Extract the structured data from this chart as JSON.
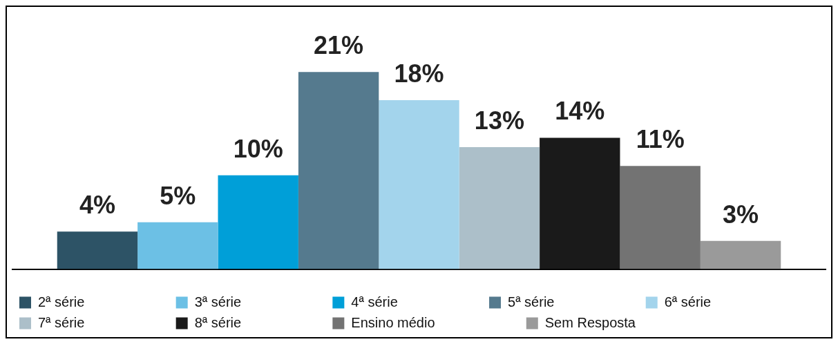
{
  "chart_data": {
    "type": "bar",
    "categories": [
      null
    ],
    "legend": "bottom",
    "grid": false,
    "series": [
      {
        "name": "2ª série",
        "color": "#2d5366",
        "values": [
          4
        ],
        "value_labels": [
          "4%"
        ]
      },
      {
        "name": "3ª série",
        "color": "#6cc0e5",
        "values": [
          5
        ],
        "value_labels": [
          "5%"
        ]
      },
      {
        "name": "4ª série",
        "color": "#009fd8",
        "values": [
          10
        ],
        "value_labels": [
          "10%"
        ]
      },
      {
        "name": "5ª série",
        "color": "#557a8e",
        "values": [
          21
        ],
        "value_labels": [
          "21%"
        ]
      },
      {
        "name": "6ª série",
        "color": "#a3d4ec",
        "values": [
          18
        ],
        "value_labels": [
          "18%"
        ]
      },
      {
        "name": "7ª série",
        "color": "#acbfc9",
        "values": [
          13
        ],
        "value_labels": [
          "13%"
        ]
      },
      {
        "name": "8ª série",
        "color": "#1a1a1a",
        "values": [
          14
        ],
        "value_labels": [
          "14%"
        ]
      },
      {
        "name": "Ensino médio",
        "color": "#737373",
        "values": [
          11
        ],
        "value_labels": [
          "11%"
        ]
      },
      {
        "name": "Sem Resposta",
        "color": "#9a9a9a",
        "values": [
          3
        ],
        "value_labels": [
          "3%"
        ]
      }
    ]
  }
}
